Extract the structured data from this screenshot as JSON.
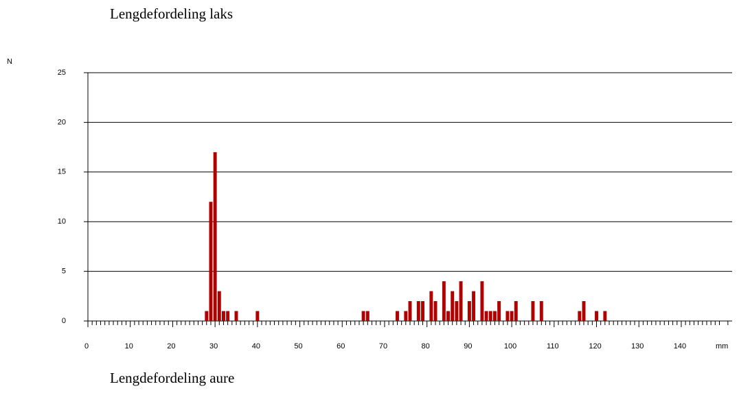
{
  "chart_data": [
    {
      "type": "bar",
      "title": "Lengdefordeling laks",
      "ylabel": "N",
      "xlabel": "mm",
      "color": "#b00000",
      "grid": true,
      "x": [
        28,
        29,
        30,
        31,
        32,
        33,
        35,
        40,
        65,
        66,
        73,
        75,
        76,
        78,
        79,
        81,
        82,
        84,
        85,
        86,
        87,
        88,
        90,
        91,
        93,
        94,
        95,
        96,
        97,
        99,
        100,
        101,
        105,
        107,
        116,
        117,
        120,
        122
      ],
      "values": [
        1,
        12,
        17,
        3,
        1,
        1,
        1,
        1,
        1,
        1,
        1,
        1,
        2,
        2,
        2,
        3,
        2,
        4,
        1,
        3,
        2,
        4,
        2,
        3,
        4,
        1,
        1,
        1,
        2,
        1,
        1,
        2,
        2,
        2,
        1,
        2,
        1,
        1
      ],
      "xlim": [
        0,
        152
      ],
      "xticks": [
        0,
        10,
        20,
        30,
        40,
        50,
        60,
        70,
        80,
        90,
        100,
        110,
        120,
        130,
        140
      ],
      "xminorticks": [
        1,
        2,
        3,
        4,
        5,
        6,
        7,
        8,
        9,
        11,
        12,
        13,
        14,
        15,
        16,
        17,
        18,
        19,
        21,
        22,
        23,
        24,
        25,
        26,
        27,
        28,
        29,
        31,
        32,
        33,
        34,
        35,
        36,
        37,
        38,
        39,
        41,
        42,
        43,
        44,
        45,
        46,
        47,
        48,
        49,
        51,
        52,
        53,
        54,
        55,
        56,
        57,
        58,
        59,
        61,
        62,
        63,
        64,
        65,
        66,
        67,
        68,
        69,
        71,
        72,
        73,
        74,
        75,
        76,
        77,
        78,
        79,
        81,
        82,
        83,
        84,
        85,
        86,
        87,
        88,
        89,
        91,
        92,
        93,
        94,
        95,
        96,
        97,
        98,
        99,
        101,
        102,
        103,
        104,
        105,
        106,
        107,
        108,
        109,
        111,
        112,
        113,
        114,
        115,
        116,
        117,
        118,
        119,
        121,
        122,
        123,
        124,
        125,
        126,
        127,
        128,
        129,
        131,
        132,
        133,
        134,
        135,
        136,
        137,
        138,
        139,
        141,
        142,
        143,
        144,
        145,
        146,
        147,
        148,
        149,
        151
      ],
      "ylim": [
        0,
        25
      ],
      "yticks": [
        0,
        5,
        10,
        15,
        20,
        25
      ]
    },
    {
      "title": "Lengdefordeling aure"
    }
  ]
}
